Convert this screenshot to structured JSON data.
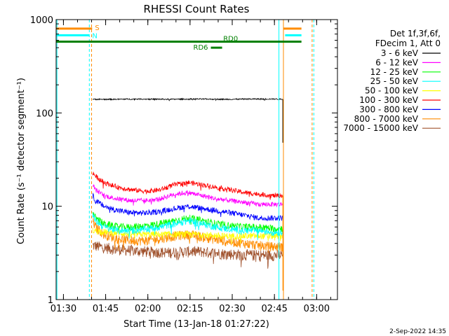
{
  "chart_data": {
    "type": "line",
    "title": "RHESSI Count Rates",
    "xlabel": "Start Time (13-Jan-18 01:27:22)",
    "ylabel": "Count Rate (s⁻¹ detector segment⁻¹)",
    "y_scale": "log",
    "ylim": [
      1,
      1000
    ],
    "xlim_minutes_after_0127": [
      0,
      100
    ],
    "x_ticks": [
      {
        "label": "01:30",
        "t": 2.6
      },
      {
        "label": "01:45",
        "t": 17.6
      },
      {
        "label": "02:00",
        "t": 32.6
      },
      {
        "label": "02:15",
        "t": 47.6
      },
      {
        "label": "02:30",
        "t": 62.6
      },
      {
        "label": "02:45",
        "t": 77.6
      },
      {
        "label": "03:00",
        "t": 92.6
      }
    ],
    "y_ticks": [
      {
        "label": "1",
        "v": 1
      },
      {
        "label": "10",
        "v": 10
      },
      {
        "label": "100",
        "v": 100
      },
      {
        "label": "1000",
        "v": 1000
      }
    ],
    "legend": {
      "header1": "Det 1f,3f,6f,",
      "header2": "FDecim 1, Att 0",
      "placement": "right"
    },
    "series": [
      {
        "name": "3 - 6 keV",
        "color": "#000000",
        "x": [
          13,
          20,
          30,
          40,
          50,
          60,
          70,
          78,
          80.6
        ],
        "y": [
          140,
          140,
          141,
          140,
          141,
          140,
          141,
          141,
          140
        ]
      },
      {
        "name": "6 - 12 keV",
        "color": "#ff00ff",
        "x": [
          13,
          14,
          17,
          22,
          27,
          32,
          37,
          42,
          47,
          52,
          57,
          62,
          67,
          72,
          77,
          80.6
        ],
        "y": [
          17,
          15,
          13,
          12,
          11.5,
          11.5,
          12,
          13.5,
          14,
          13,
          12,
          11.5,
          11,
          10.5,
          10.5,
          10.5
        ]
      },
      {
        "name": "12 - 25 keV",
        "color": "#00ff00",
        "x": [
          13,
          14,
          17,
          22,
          27,
          32,
          37,
          42,
          47,
          52,
          57,
          62,
          67,
          72,
          77,
          80.6
        ],
        "y": [
          8.5,
          7.5,
          6.5,
          6.0,
          6.0,
          6.2,
          6.5,
          7.0,
          7.5,
          7.0,
          6.5,
          6.2,
          6.0,
          6.0,
          5.8,
          5.8
        ]
      },
      {
        "name": "25 - 50 keV",
        "color": "#00ffff",
        "x": [
          13,
          14,
          17,
          22,
          27,
          32,
          37,
          42,
          47,
          52,
          57,
          62,
          67,
          72,
          77,
          80.6
        ],
        "y": [
          8.0,
          7.0,
          6.0,
          5.5,
          5.5,
          5.7,
          6.0,
          6.5,
          7.0,
          6.5,
          6.0,
          5.7,
          5.5,
          5.5,
          5.3,
          5.3
        ]
      },
      {
        "name": "50 - 100 keV",
        "color": "#ffff00",
        "x": [
          13,
          20,
          30,
          40,
          50,
          60,
          70,
          80.6
        ],
        "y": [
          5.5,
          5.2,
          5.0,
          5.0,
          5.0,
          4.8,
          4.8,
          4.8
        ]
      },
      {
        "name": "100 - 300 keV",
        "color": "#ff0000",
        "x": [
          13,
          14,
          17,
          22,
          27,
          32,
          37,
          42,
          47,
          52,
          57,
          62,
          67,
          72,
          77,
          80.6
        ],
        "y": [
          23,
          21,
          18,
          16,
          15,
          14.5,
          15,
          17,
          18,
          17,
          16,
          15,
          14,
          13.5,
          13,
          13
        ]
      },
      {
        "name": "300 - 800 keV",
        "color": "#0000ff",
        "x": [
          13,
          14,
          17,
          22,
          27,
          32,
          37,
          42,
          47,
          52,
          57,
          62,
          67,
          72,
          77,
          80.6
        ],
        "y": [
          13,
          11.5,
          10,
          9.0,
          8.5,
          8.5,
          8.8,
          9.5,
          10,
          9.5,
          9.0,
          8.5,
          8.0,
          7.5,
          7.5,
          7.5
        ]
      },
      {
        "name": "800 - 7000 keV",
        "color": "#ff8c00",
        "x": [
          13,
          14,
          17,
          22,
          27,
          32,
          37,
          42,
          47,
          52,
          57,
          62,
          67,
          72,
          77,
          80.6
        ],
        "y": [
          7.0,
          6.0,
          5.0,
          4.5,
          4.3,
          4.3,
          4.5,
          4.8,
          5.0,
          4.7,
          4.4,
          4.2,
          4.0,
          3.8,
          3.7,
          3.7
        ]
      },
      {
        "name": "7000 - 15000 keV",
        "color": "#a0522d",
        "x": [
          13,
          20,
          30,
          40,
          50,
          60,
          70,
          80.6
        ],
        "y": [
          3.8,
          3.5,
          3.3,
          3.2,
          3.3,
          3.1,
          3.0,
          3.0
        ]
      }
    ],
    "flags": [
      {
        "label": "S",
        "color": "#ff8c00",
        "level": 800,
        "segments": [
          [
            0,
            12.8
          ],
          [
            80.8,
            87.2
          ]
        ]
      },
      {
        "label": "N",
        "color": "#00ffff",
        "level": 680,
        "segments": [
          [
            0,
            11.8
          ],
          [
            81.4,
            87.2
          ]
        ]
      },
      {
        "label": "RD0",
        "color": "#008000",
        "level": 580,
        "segments": [
          [
            0,
            87.2
          ]
        ]
      },
      {
        "label": "RD6",
        "color": "#008000",
        "level": 500,
        "segments": [
          [
            55,
            59
          ]
        ]
      }
    ],
    "vertical_markers": [
      {
        "t": 0.3,
        "color": "#00ffff",
        "dashed": false
      },
      {
        "t": 11.8,
        "color": "#00ffff",
        "dashed": true
      },
      {
        "t": 12.6,
        "color": "#ff8c00",
        "dashed": true
      },
      {
        "t": 79.2,
        "color": "#00ffff",
        "dashed": false
      },
      {
        "t": 80.8,
        "color": "#ff8c00",
        "dashed": false
      },
      {
        "t": 91.0,
        "color": "#ff8c00",
        "dashed": true
      },
      {
        "t": 91.6,
        "color": "#00ffff",
        "dashed": true
      }
    ]
  },
  "footer": {
    "date": "2-Sep-2022 14:35"
  }
}
